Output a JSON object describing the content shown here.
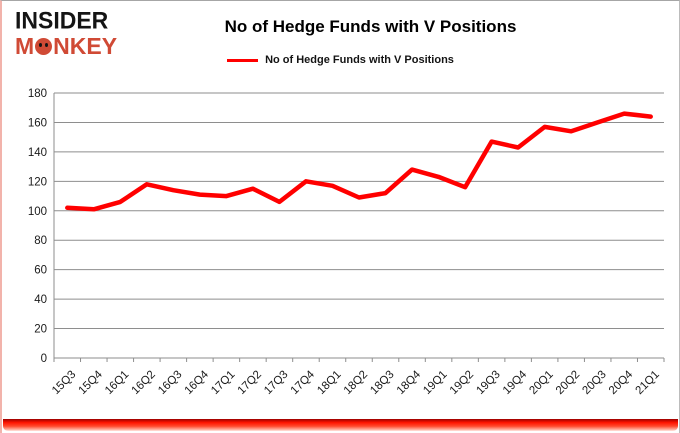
{
  "logo": {
    "line1": "INSIDER",
    "line2_prefix": "M",
    "line2_suffix": "NKEY",
    "text_color": "#141414",
    "accent_color": "#d04a35"
  },
  "header": {
    "title": "No of Hedge Funds with V Positions"
  },
  "legend": {
    "label": "No of Hedge Funds with V Positions",
    "line_color": "#ff0000"
  },
  "chart_data": {
    "type": "line",
    "title": "No of Hedge Funds with V Positions",
    "categories": [
      "15Q3",
      "15Q4",
      "16Q1",
      "16Q2",
      "16Q3",
      "16Q4",
      "17Q1",
      "17Q2",
      "17Q3",
      "17Q4",
      "18Q1",
      "18Q2",
      "18Q3",
      "18Q4",
      "19Q1",
      "19Q2",
      "19Q3",
      "19Q4",
      "20Q1",
      "20Q2",
      "20Q3",
      "20Q4",
      "21Q1"
    ],
    "series": [
      {
        "name": "No of Hedge Funds with V Positions",
        "color": "#ff0000",
        "values": [
          102,
          101,
          106,
          118,
          114,
          111,
          110,
          115,
          106,
          120,
          117,
          109,
          112,
          128,
          123,
          116,
          147,
          143,
          157,
          154,
          160,
          166,
          164
        ]
      }
    ],
    "xlabel": "",
    "ylabel": "",
    "ylim": [
      0,
      180
    ],
    "ytick_step": 20,
    "grid": true,
    "grid_color": "#8e8e8e",
    "tick_label_color": "#1a1a1a",
    "legend_position": "top"
  }
}
